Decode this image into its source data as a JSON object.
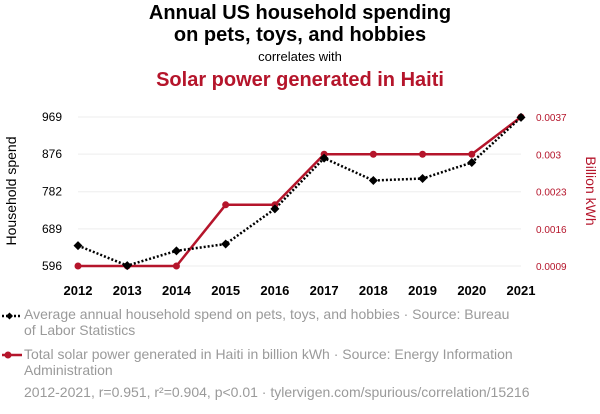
{
  "header": {
    "title_line1": "Annual US household spending",
    "title_line2": "on pets, toys, and hobbies",
    "correlates": "correlates with",
    "title_series2": "Solar power generated in Haiti"
  },
  "chart_data": {
    "type": "line",
    "x": [
      2012,
      2013,
      2014,
      2015,
      2016,
      2017,
      2018,
      2019,
      2020,
      2021
    ],
    "y_left_label": "Household spend",
    "y_right_label": "Billion kWh",
    "y_left_ticks": [
      "596",
      "689",
      "782",
      "876",
      "969"
    ],
    "y_left_tick_values": [
      596,
      689,
      782,
      876,
      969
    ],
    "y_right_ticks": [
      "0.0009",
      "0.0016",
      "0.0023",
      "0.003",
      "0.0037"
    ],
    "y_right_tick_values": [
      0.0009,
      0.0016,
      0.0023,
      0.003,
      0.0037
    ],
    "y_left_range": [
      596,
      969
    ],
    "y_right_range": [
      0.0009,
      0.0037
    ],
    "grid": true,
    "series": [
      {
        "axis": "left",
        "color": "#000000",
        "style": "dotted",
        "marker": "diamond",
        "values": [
          647,
          597,
          634,
          651,
          739,
          866,
          810,
          815,
          855,
          968
        ]
      },
      {
        "axis": "right",
        "color": "#b5152b",
        "style": "solid",
        "marker": "circle",
        "values": [
          0.0009,
          0.0009,
          0.0009,
          0.00205,
          0.00205,
          0.003,
          0.003,
          0.003,
          0.003,
          0.0037
        ]
      }
    ]
  },
  "legend": {
    "series1_text": "Average annual household spend on pets, toys, and hobbies · Source: Bureau of Labor Statistics",
    "series2_text": "Total solar power generated in Haiti in billion kWh · Source: Energy Information Administration"
  },
  "footer": "2012-2021, r=0.951, r²=0.904, p<0.01 · tylervigen.com/spurious/correlation/15216"
}
